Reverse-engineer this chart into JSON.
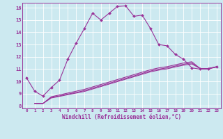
{
  "xlabel": "Windchill (Refroidissement éolien,°C)",
  "xlim": [
    -0.5,
    23.5
  ],
  "ylim": [
    7.8,
    16.4
  ],
  "yticks": [
    8,
    9,
    10,
    11,
    12,
    13,
    14,
    15,
    16
  ],
  "xticks": [
    0,
    1,
    2,
    3,
    4,
    5,
    6,
    7,
    8,
    9,
    10,
    11,
    12,
    13,
    14,
    15,
    16,
    17,
    18,
    19,
    20,
    21,
    22,
    23
  ],
  "bg_color": "#cce9f0",
  "line_color": "#993399",
  "grid_color": "#ffffff",
  "line1_x": [
    0,
    1,
    2,
    3,
    4,
    5,
    6,
    7,
    8,
    9,
    10,
    11,
    12,
    13,
    14,
    15,
    16,
    17,
    18,
    19,
    20,
    21,
    22,
    23
  ],
  "line1_y": [
    10.3,
    9.2,
    8.8,
    9.5,
    10.1,
    11.8,
    13.1,
    14.3,
    15.55,
    15.0,
    15.55,
    16.1,
    16.15,
    15.3,
    15.4,
    14.3,
    13.0,
    12.9,
    12.2,
    11.8,
    11.1,
    11.0,
    11.0,
    11.2
  ],
  "line2_x": [
    1,
    2,
    3,
    4,
    5,
    6,
    7,
    8,
    9,
    10,
    11,
    12,
    13,
    14,
    15,
    16,
    17,
    18,
    19,
    20,
    21,
    22,
    23
  ],
  "line2_y": [
    8.2,
    8.2,
    8.75,
    8.9,
    9.05,
    9.2,
    9.35,
    9.55,
    9.75,
    9.95,
    10.15,
    10.35,
    10.55,
    10.75,
    10.95,
    11.1,
    11.2,
    11.35,
    11.5,
    11.6,
    11.05,
    11.05,
    11.2
  ],
  "line3_x": [
    1,
    2,
    3,
    4,
    5,
    6,
    7,
    8,
    9,
    10,
    11,
    12,
    13,
    14,
    15,
    16,
    17,
    18,
    19,
    20,
    21,
    22,
    23
  ],
  "line3_y": [
    8.2,
    8.2,
    8.7,
    8.82,
    8.97,
    9.1,
    9.25,
    9.45,
    9.65,
    9.85,
    10.05,
    10.25,
    10.45,
    10.65,
    10.85,
    11.0,
    11.1,
    11.25,
    11.4,
    11.5,
    11.05,
    11.05,
    11.18
  ],
  "line4_x": [
    1,
    2,
    3,
    4,
    5,
    6,
    7,
    8,
    9,
    10,
    11,
    12,
    13,
    14,
    15,
    16,
    17,
    18,
    19,
    20,
    21,
    22,
    23
  ],
  "line4_y": [
    8.2,
    8.2,
    8.65,
    8.78,
    8.92,
    9.05,
    9.18,
    9.38,
    9.58,
    9.78,
    9.98,
    10.18,
    10.38,
    10.58,
    10.78,
    10.92,
    11.02,
    11.18,
    11.32,
    11.42,
    11.05,
    11.05,
    11.16
  ]
}
